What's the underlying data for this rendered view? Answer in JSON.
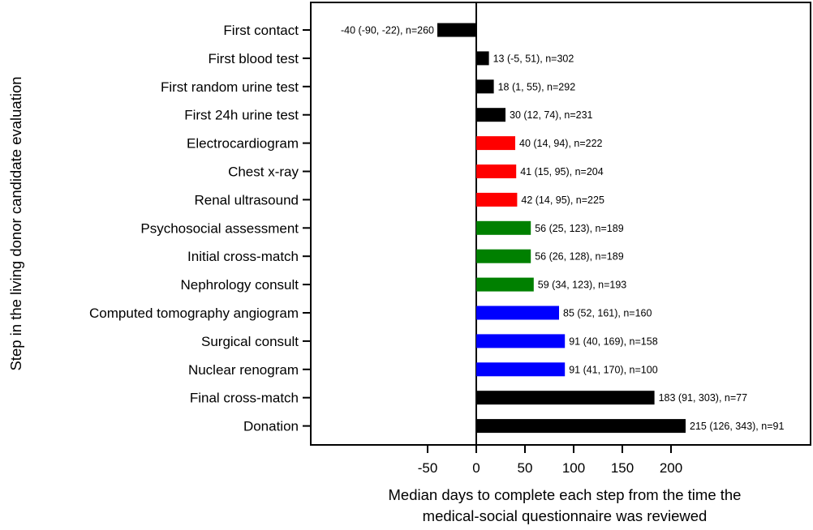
{
  "chart_data": {
    "type": "bar",
    "orientation": "horizontal",
    "title": "",
    "xlabel_lines": [
      "Median days to complete each step from the time the",
      "medical-social questionnaire was reviewed"
    ],
    "ylabel": "Step in the living donor candidate evaluation",
    "xlim": [
      -170,
      320
    ],
    "xticks": [
      -50,
      0,
      50,
      100,
      150,
      200
    ],
    "xtick_labels": [
      "-50",
      "0",
      "50",
      "100",
      "150",
      "200"
    ],
    "grid": false,
    "legend": "none",
    "categories": [
      "First contact",
      "First blood test",
      "First random urine test",
      "First 24h urine test",
      "Electrocardiogram",
      "Chest x-ray",
      "Renal ultrasound",
      "Psychosocial assessment",
      "Initial cross-match",
      "Nephrology consult",
      "Computed tomography angiogram",
      "Surgical consult",
      "Nuclear renogram",
      "Final cross-match",
      "Donation"
    ],
    "values": [
      -40,
      13,
      18,
      30,
      40,
      41,
      42,
      56,
      56,
      59,
      85,
      91,
      91,
      183,
      215
    ],
    "data_labels": [
      "-40 (-90, -22), n=260",
      "13 (-5, 51), n=302",
      "18 (1, 55), n=292",
      "30 (12, 74), n=231",
      "40 (14, 94), n=222",
      "41 (15, 95), n=204",
      "42 (14, 95), n=225",
      "56 (25, 123), n=189",
      "56 (26, 128), n=189",
      "59 (34, 123), n=193",
      "85 (52, 161), n=160",
      "91 (40, 169), n=158",
      "91 (41, 170), n=100",
      "183 (91, 303), n=77",
      "215 (126, 343), n=91"
    ],
    "colors": [
      "#000000",
      "#000000",
      "#000000",
      "#000000",
      "#ff0000",
      "#ff0000",
      "#ff0000",
      "#008000",
      "#008000",
      "#008000",
      "#0000ff",
      "#0000ff",
      "#0000ff",
      "#000000",
      "#000000"
    ]
  }
}
